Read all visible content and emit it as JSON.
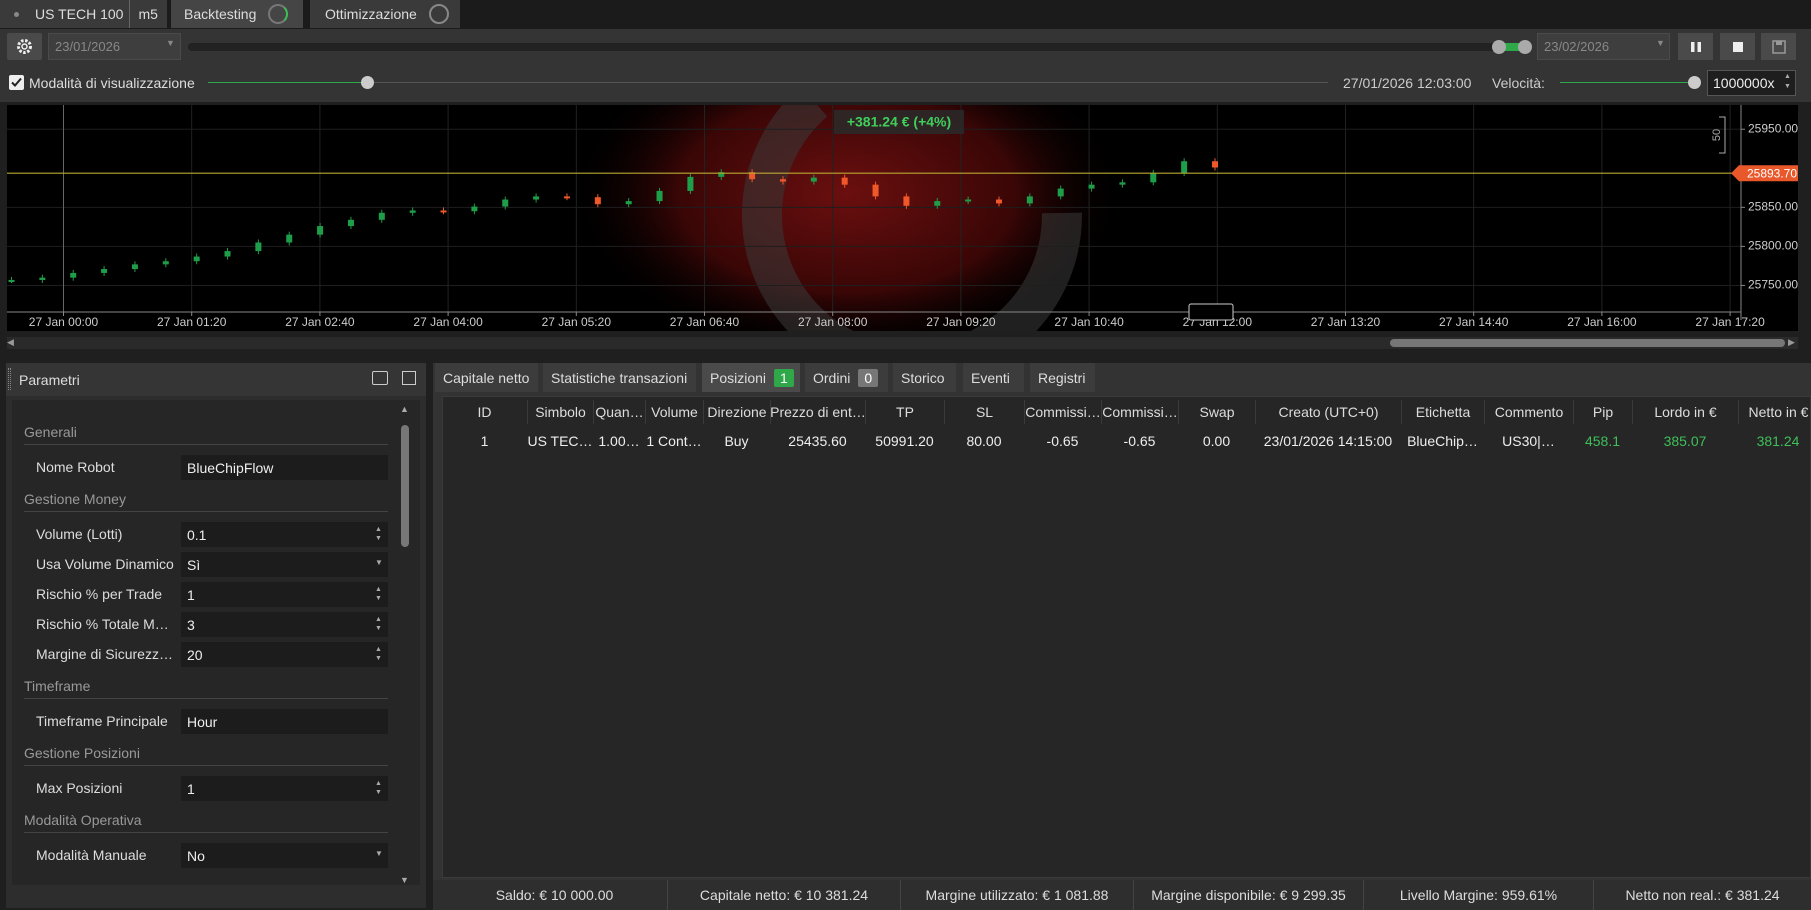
{
  "tabs": {
    "symbol": "US TECH 100",
    "timeframe": "m5",
    "backtesting": "Backtesting",
    "optimization": "Ottimizzazione"
  },
  "toolbar": {
    "start_date": "23/01/2026",
    "end_date": "23/02/2026",
    "visual_mode": "Modalità di visualizzazione",
    "current_time": "27/01/2026 12:03:00",
    "speed_label": "Velocità:",
    "speed": "1000000x"
  },
  "chart": {
    "type": "candlestick",
    "profit": "+381.24 € (+4%)",
    "price": 25893.7,
    "price_label": "25893.70",
    "scale_label": "50",
    "ylim": [
      25716,
      25981
    ],
    "yticks": [
      {
        "value": 25950,
        "label": "25950.00"
      },
      {
        "value": 25850,
        "label": "25850.00"
      },
      {
        "value": 25800,
        "label": "25800.00"
      },
      {
        "value": 25750,
        "label": "25750.00"
      }
    ],
    "xticks": [
      "27 Jan 00:00",
      "27 Jan 01:20",
      "27 Jan 02:40",
      "27 Jan 04:00",
      "27 Jan 05:20",
      "27 Jan 06:40",
      "27 Jan 08:00",
      "27 Jan 09:20",
      "27 Jan 10:40",
      "27 Jan 12:00",
      "27 Jan 13:20",
      "27 Jan 14:40",
      "27 Jan 16:00",
      "27 Jan 17:20"
    ],
    "values": [
      25757,
      25760,
      25766,
      25771,
      25777,
      25781,
      25787,
      25794,
      25805,
      25815,
      25826,
      25834,
      25843,
      25846,
      25845,
      25851,
      25860,
      25864,
      25863,
      25854,
      25858,
      25871,
      25889,
      25895,
      25886,
      25883,
      25888,
      25879,
      25864,
      25852,
      25858,
      25860,
      25855,
      25864,
      25874,
      25879,
      25882,
      25894,
      25909,
      25901
    ],
    "grid": true,
    "up_color": "#1f9e4a",
    "down_color": "#f0582a",
    "price_color": "#b8a832"
  },
  "params": {
    "title": "Parametri",
    "groups": [
      {
        "name": "Generali",
        "items": [
          {
            "label": "Nome Robot",
            "value": "BlueChipFlow",
            "input": "text"
          }
        ]
      },
      {
        "name": "Gestione Money",
        "items": [
          {
            "label": "Volume (Lotti)",
            "value": "0.1",
            "input": "spin"
          },
          {
            "label": "Usa Volume Dinamico",
            "value": "Sì",
            "input": "select"
          },
          {
            "label": "Rischio % per Trade",
            "value": "1",
            "input": "spin"
          },
          {
            "label": "Rischio % Totale M…",
            "value": "3",
            "input": "spin"
          },
          {
            "label": "Margine di Sicurezz…",
            "value": "20",
            "input": "spin"
          }
        ]
      },
      {
        "name": "Timeframe",
        "items": [
          {
            "label": "Timeframe Principale",
            "value": "Hour",
            "input": "text"
          }
        ]
      },
      {
        "name": "Gestione Posizioni",
        "items": [
          {
            "label": "Max Posizioni",
            "value": "1",
            "input": "spin"
          }
        ]
      },
      {
        "name": "Modalità Operativa",
        "items": [
          {
            "label": "Modalità Manuale",
            "value": "No",
            "input": "select"
          }
        ]
      }
    ]
  },
  "results": {
    "tabs": [
      {
        "label": "Capitale netto"
      },
      {
        "label": "Statistiche transazioni"
      },
      {
        "label": "Posizioni",
        "badge": 1,
        "active": true
      },
      {
        "label": "Ordini",
        "badge": 0
      },
      {
        "label": "Storico"
      },
      {
        "label": "Eventi"
      },
      {
        "label": "Registri"
      }
    ],
    "columns": [
      "ID",
      "Simbolo",
      "Quan…",
      "Volume",
      "Direzione",
      "Prezzo di ent…",
      "TP",
      "SL",
      "Commissi…",
      "Commissi…",
      "Swap",
      "Creato (UTC+0)",
      "Etichetta",
      "Commento",
      "Pip",
      "Lordo in €",
      "Netto in €"
    ],
    "rows": [
      [
        "1",
        "US TEC…",
        "1.00…",
        "1 Cont…",
        "Buy",
        "25435.60",
        "50991.20",
        "80.00",
        "-0.65",
        "-0.65",
        "0.00",
        "23/01/2026 14:15:00",
        "BlueChip…",
        "US30|…",
        "458.1",
        "385.07",
        "381.24"
      ]
    ]
  },
  "footer": [
    "Saldo: € 10 000.00",
    "Capitale netto: € 10 381.24",
    "Margine utilizzato: € 1 081.88",
    "Margine disponibile: € 9 299.35",
    "Livello Margine: 959.61%",
    "Netto non real.: € 381.24"
  ]
}
